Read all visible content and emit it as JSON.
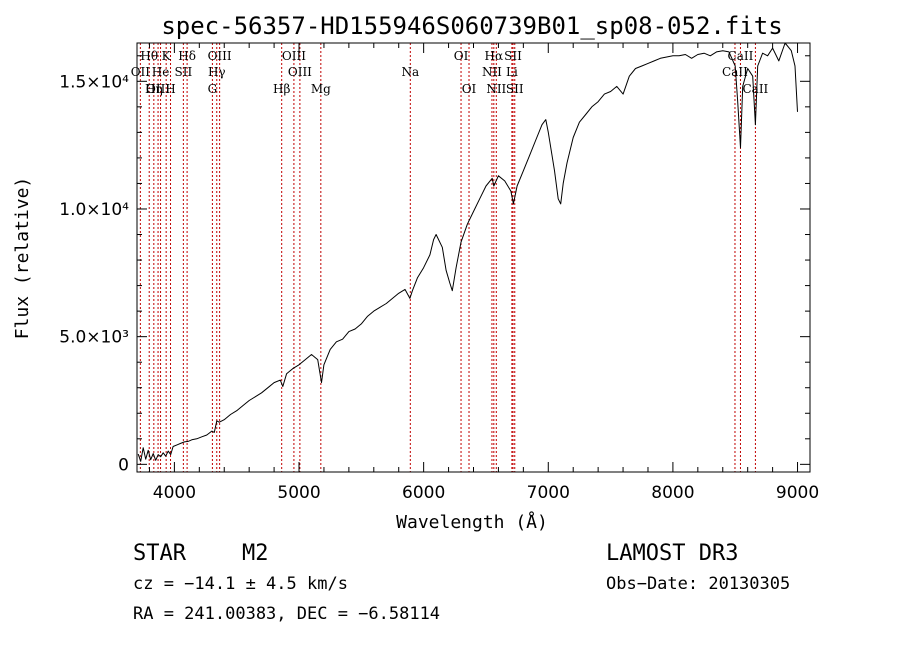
{
  "chart_data": {
    "type": "line",
    "title": "spec-56357-HD155946S060739B01_sp08-052.fits",
    "xlabel": "Wavelength (Å)",
    "ylabel": "Flux (relative)",
    "xlim": [
      3700,
      9100
    ],
    "ylim": [
      -300,
      16500
    ],
    "x_ticks": [
      {
        "value": 4000,
        "label": "4000"
      },
      {
        "value": 5000,
        "label": "5000"
      },
      {
        "value": 6000,
        "label": "6000"
      },
      {
        "value": 7000,
        "label": "7000"
      },
      {
        "value": 8000,
        "label": "8000"
      },
      {
        "value": 9000,
        "label": "9000"
      }
    ],
    "y_ticks": [
      {
        "value": 0,
        "label": "0"
      },
      {
        "value": 5000,
        "label": "5.0×10³"
      },
      {
        "value": 10000,
        "label": "1.0×10⁴"
      },
      {
        "value": 15000,
        "label": "1.5×10⁴"
      }
    ],
    "series": [
      {
        "name": "spectrum",
        "color": "#000000",
        "points": [
          [
            3710,
            400
          ],
          [
            3730,
            120
          ],
          [
            3750,
            650
          ],
          [
            3770,
            200
          ],
          [
            3790,
            550
          ],
          [
            3810,
            180
          ],
          [
            3830,
            420
          ],
          [
            3850,
            160
          ],
          [
            3870,
            380
          ],
          [
            3890,
            300
          ],
          [
            3910,
            450
          ],
          [
            3930,
            320
          ],
          [
            3950,
            520
          ],
          [
            3970,
            380
          ],
          [
            3990,
            700
          ],
          [
            4020,
            760
          ],
          [
            4050,
            820
          ],
          [
            4080,
            880
          ],
          [
            4110,
            900
          ],
          [
            4140,
            960
          ],
          [
            4180,
            1000
          ],
          [
            4220,
            1080
          ],
          [
            4260,
            1150
          ],
          [
            4300,
            1300
          ],
          [
            4320,
            1250
          ],
          [
            4340,
            1700
          ],
          [
            4360,
            1650
          ],
          [
            4400,
            1750
          ],
          [
            4450,
            1950
          ],
          [
            4500,
            2100
          ],
          [
            4550,
            2300
          ],
          [
            4600,
            2500
          ],
          [
            4650,
            2650
          ],
          [
            4700,
            2800
          ],
          [
            4750,
            3000
          ],
          [
            4800,
            3200
          ],
          [
            4850,
            3300
          ],
          [
            4870,
            3050
          ],
          [
            4900,
            3550
          ],
          [
            4950,
            3750
          ],
          [
            5000,
            3900
          ],
          [
            5050,
            4100
          ],
          [
            5100,
            4300
          ],
          [
            5150,
            4100
          ],
          [
            5180,
            3200
          ],
          [
            5200,
            3900
          ],
          [
            5250,
            4500
          ],
          [
            5300,
            4800
          ],
          [
            5350,
            4900
          ],
          [
            5400,
            5200
          ],
          [
            5450,
            5300
          ],
          [
            5500,
            5500
          ],
          [
            5550,
            5800
          ],
          [
            5600,
            6000
          ],
          [
            5650,
            6150
          ],
          [
            5700,
            6300
          ],
          [
            5750,
            6500
          ],
          [
            5800,
            6700
          ],
          [
            5850,
            6850
          ],
          [
            5890,
            6500
          ],
          [
            5910,
            6800
          ],
          [
            5950,
            7300
          ],
          [
            6000,
            7700
          ],
          [
            6050,
            8200
          ],
          [
            6080,
            8800
          ],
          [
            6100,
            9000
          ],
          [
            6150,
            8500
          ],
          [
            6180,
            7600
          ],
          [
            6210,
            7100
          ],
          [
            6230,
            6800
          ],
          [
            6260,
            7700
          ],
          [
            6300,
            8700
          ],
          [
            6350,
            9400
          ],
          [
            6400,
            9900
          ],
          [
            6450,
            10400
          ],
          [
            6500,
            10900
          ],
          [
            6550,
            11200
          ],
          [
            6563,
            10900
          ],
          [
            6600,
            11300
          ],
          [
            6650,
            11100
          ],
          [
            6700,
            10700
          ],
          [
            6720,
            10200
          ],
          [
            6750,
            10900
          ],
          [
            6800,
            11500
          ],
          [
            6850,
            12100
          ],
          [
            6900,
            12700
          ],
          [
            6950,
            13300
          ],
          [
            6980,
            13500
          ],
          [
            7000,
            13000
          ],
          [
            7050,
            11500
          ],
          [
            7080,
            10400
          ],
          [
            7100,
            10200
          ],
          [
            7120,
            11000
          ],
          [
            7150,
            11800
          ],
          [
            7200,
            12800
          ],
          [
            7250,
            13400
          ],
          [
            7300,
            13700
          ],
          [
            7350,
            14000
          ],
          [
            7400,
            14200
          ],
          [
            7450,
            14500
          ],
          [
            7500,
            14600
          ],
          [
            7550,
            14800
          ],
          [
            7600,
            14500
          ],
          [
            7650,
            15200
          ],
          [
            7700,
            15500
          ],
          [
            7750,
            15600
          ],
          [
            7800,
            15700
          ],
          [
            7850,
            15800
          ],
          [
            7900,
            15900
          ],
          [
            7950,
            15950
          ],
          [
            8000,
            16000
          ],
          [
            8050,
            16000
          ],
          [
            8100,
            16050
          ],
          [
            8150,
            15900
          ],
          [
            8200,
            16050
          ],
          [
            8250,
            16100
          ],
          [
            8300,
            16000
          ],
          [
            8350,
            16150
          ],
          [
            8400,
            16200
          ],
          [
            8450,
            16150
          ],
          [
            8500,
            15600
          ],
          [
            8520,
            14200
          ],
          [
            8542,
            12400
          ],
          [
            8560,
            14800
          ],
          [
            8600,
            15500
          ],
          [
            8640,
            15200
          ],
          [
            8662,
            13300
          ],
          [
            8680,
            15600
          ],
          [
            8720,
            16100
          ],
          [
            8760,
            16000
          ],
          [
            8800,
            16300
          ],
          [
            8850,
            15800
          ],
          [
            8900,
            16500
          ],
          [
            8950,
            16200
          ],
          [
            8980,
            15600
          ],
          [
            9000,
            13800
          ]
        ]
      }
    ],
    "spectral_lines": [
      {
        "label": "Hθ",
        "wavelength": 3798,
        "row": 1
      },
      {
        "label": "OII",
        "wavelength": 3727,
        "row": 2
      },
      {
        "label": "OIII",
        "wavelength": 3869,
        "row": 3
      },
      {
        "label": "He",
        "wavelength": 3889,
        "row": 2
      },
      {
        "label": "Hη",
        "wavelength": 3835,
        "row": 3
      },
      {
        "label": "K",
        "wavelength": 3934,
        "row": 1
      },
      {
        "label": "SII",
        "wavelength": 4072,
        "row": 2
      },
      {
        "label": "H",
        "wavelength": 3969,
        "row": 3
      },
      {
        "label": "Hδ",
        "wavelength": 4102,
        "row": 1
      },
      {
        "label": "OIII",
        "wavelength": 4363,
        "row": 1
      },
      {
        "label": "Hγ",
        "wavelength": 4340,
        "row": 2
      },
      {
        "label": "G",
        "wavelength": 4305,
        "row": 3
      },
      {
        "label": "Hβ",
        "wavelength": 4861,
        "row": 3
      },
      {
        "label": "OIII",
        "wavelength": 4959,
        "row": 1
      },
      {
        "label": "OIII",
        "wavelength": 5007,
        "row": 2
      },
      {
        "label": "Mg",
        "wavelength": 5175,
        "row": 3
      },
      {
        "label": "Na",
        "wavelength": 5893,
        "row": 2
      },
      {
        "label": "OI",
        "wavelength": 6300,
        "row": 1
      },
      {
        "label": "OI",
        "wavelength": 6364,
        "row": 3
      },
      {
        "label": "Hα",
        "wavelength": 6563,
        "row": 1
      },
      {
        "label": "NII",
        "wavelength": 6548,
        "row": 2
      },
      {
        "label": "NII",
        "wavelength": 6583,
        "row": 3
      },
      {
        "label": "SII",
        "wavelength": 6717,
        "row": 1
      },
      {
        "label": "Li",
        "wavelength": 6708,
        "row": 2
      },
      {
        "label": "SII",
        "wavelength": 6731,
        "row": 3
      },
      {
        "label": "CaII",
        "wavelength": 8542,
        "row": 1
      },
      {
        "label": "CaII",
        "wavelength": 8498,
        "row": 2
      },
      {
        "label": "CaII",
        "wavelength": 8662,
        "row": 3
      }
    ]
  },
  "info": {
    "object_class": "STAR",
    "subclass": "M2",
    "survey": "LAMOST DR3",
    "redshift": "cz = −14.1 ± 4.5 km/s",
    "obs_date": "Obs−Date: 20130305",
    "coords": "RA = 241.00383, DEC =  −6.58114"
  }
}
